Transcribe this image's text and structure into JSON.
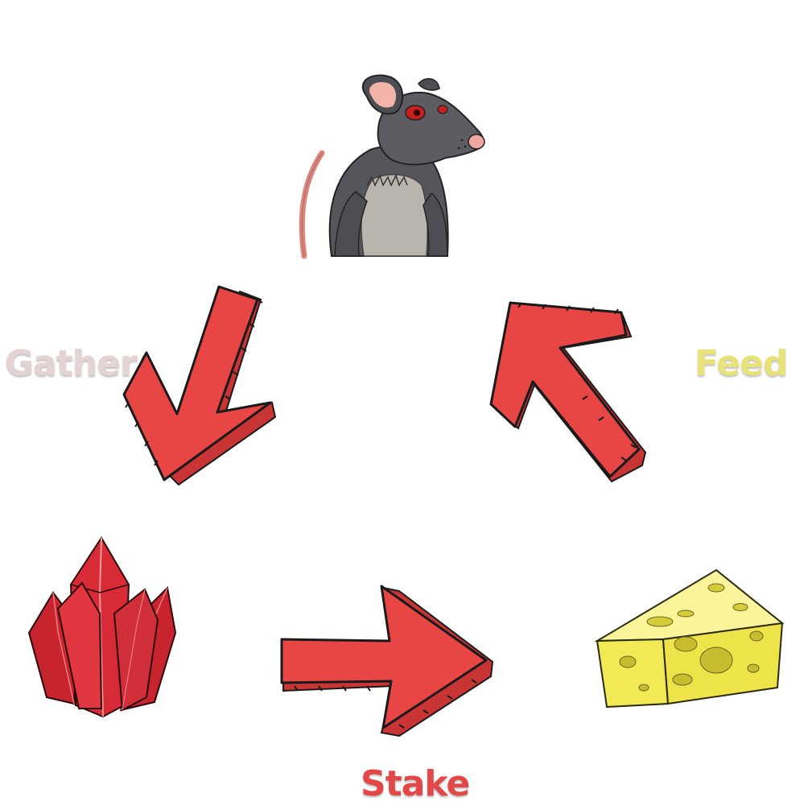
{
  "labels": {
    "gather": "Gather",
    "feed": "Feed",
    "stake": "Stake"
  },
  "nodes": {
    "rat": "rat-illustration",
    "crystal": "red-crystal-illustration",
    "cheese": "cheese-wedge-illustration"
  },
  "colors": {
    "arrow_fill": "#e84545",
    "arrow_outline": "#1a1a1a",
    "gather_text": "#e4d3d3",
    "feed_text": "#e8e27a",
    "stake_text": "#e24848",
    "cheese_fill": "#f2ea55",
    "crystal_fill": "#d92b35",
    "rat_fur": "#5a5b60"
  }
}
